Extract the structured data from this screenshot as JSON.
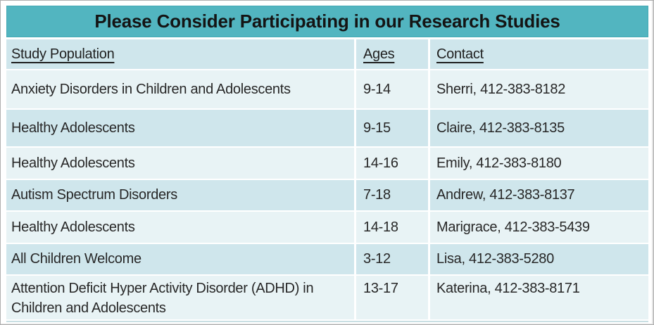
{
  "header": {
    "title": "Please Consider Participating in our Research Studies"
  },
  "table": {
    "columns": {
      "population": "Study Population",
      "ages": "Ages",
      "contact": "Contact"
    },
    "rows": [
      {
        "population": "Anxiety Disorders in Children and Adolescents",
        "ages": "9-14",
        "contact": "Sherri, 412-383-8182"
      },
      {
        "population": "Healthy Adolescents",
        "ages": "9-15",
        "contact": "Claire, 412-383-8135"
      },
      {
        "population": "Healthy Adolescents",
        "ages": "14-16",
        "contact": "Emily, 412-383-8180"
      },
      {
        "population": "Autism Spectrum Disorders",
        "ages": "7-18",
        "contact": "Andrew, 412-383-8137"
      },
      {
        "population": "Healthy Adolescents",
        "ages": "14-18",
        "contact": "Marigrace, 412-383-5439"
      },
      {
        "population": "All Children Welcome",
        "ages": "3-12",
        "contact": "Lisa, 412-383-5280"
      },
      {
        "population": "Attention Deficit Hyper Activity Disorder (ADHD) in Children and Adolescents",
        "ages": "13-17",
        "contact": "Katerina, 412-383-8171"
      }
    ]
  },
  "colors": {
    "title_bar_teal": "#52b5c0",
    "row_medium": "#cfe6ec",
    "row_light": "#e8f3f5",
    "text_dark": "#272727"
  }
}
